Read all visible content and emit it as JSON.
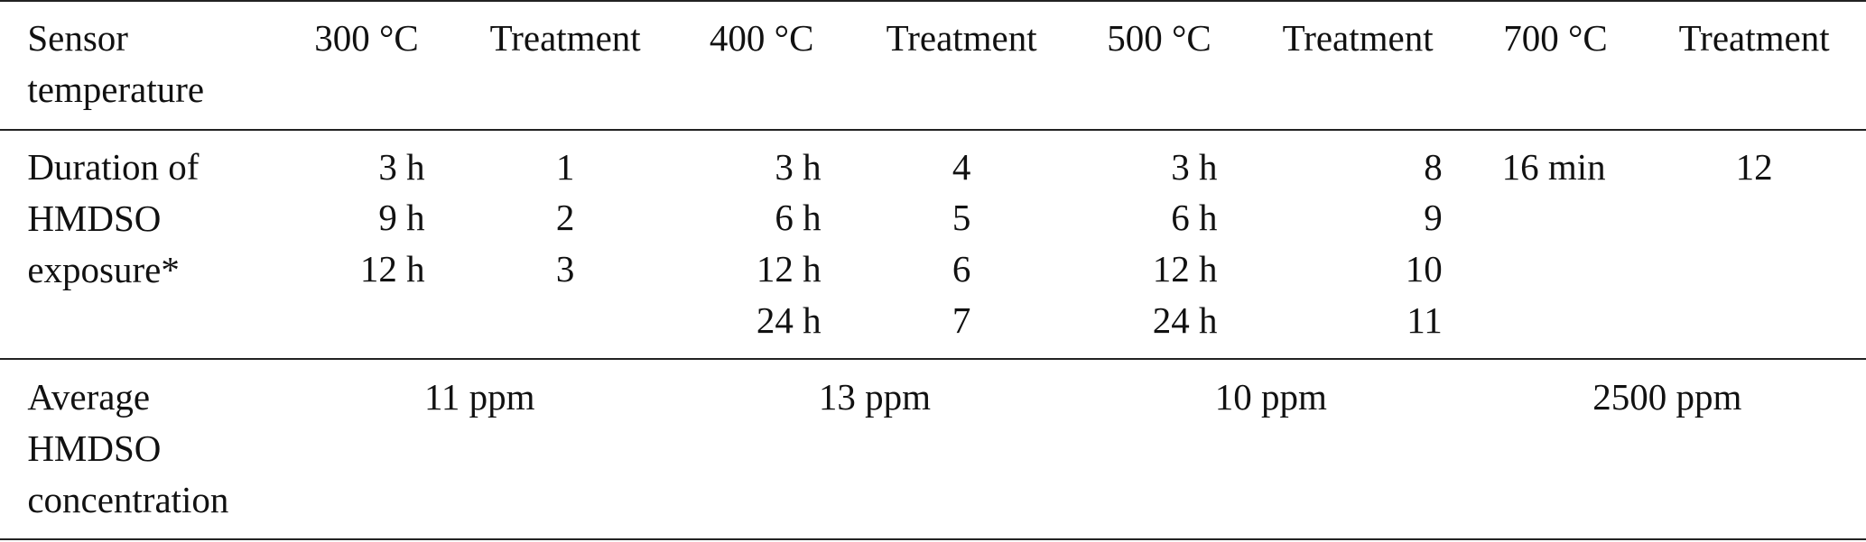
{
  "table": {
    "header": [
      "Sensor temperature",
      "300 °C",
      "Treatment",
      "400 °C",
      "Treatment",
      "500 °C",
      "Treatment",
      "700 °C",
      "Treatment"
    ],
    "duration": {
      "label": "Duration of HMDSO exposure*",
      "groups": [
        {
          "times": [
            "3 h",
            "9 h",
            "12 h"
          ],
          "treatments": [
            1,
            2,
            3
          ]
        },
        {
          "times": [
            "3 h",
            "6 h",
            "12 h",
            "24 h"
          ],
          "treatments": [
            4,
            5,
            6,
            7
          ]
        },
        {
          "times": [
            "3 h",
            "6 h",
            "12 h",
            "24 h"
          ],
          "treatments": [
            8,
            9,
            10,
            11
          ]
        },
        {
          "times": [
            "16 min"
          ],
          "treatments": [
            12
          ]
        }
      ]
    },
    "concentration": {
      "label": "Average HMDSO concentration",
      "values": [
        "11 ppm",
        "13 ppm",
        "10 ppm",
        "2500 ppm"
      ]
    }
  }
}
